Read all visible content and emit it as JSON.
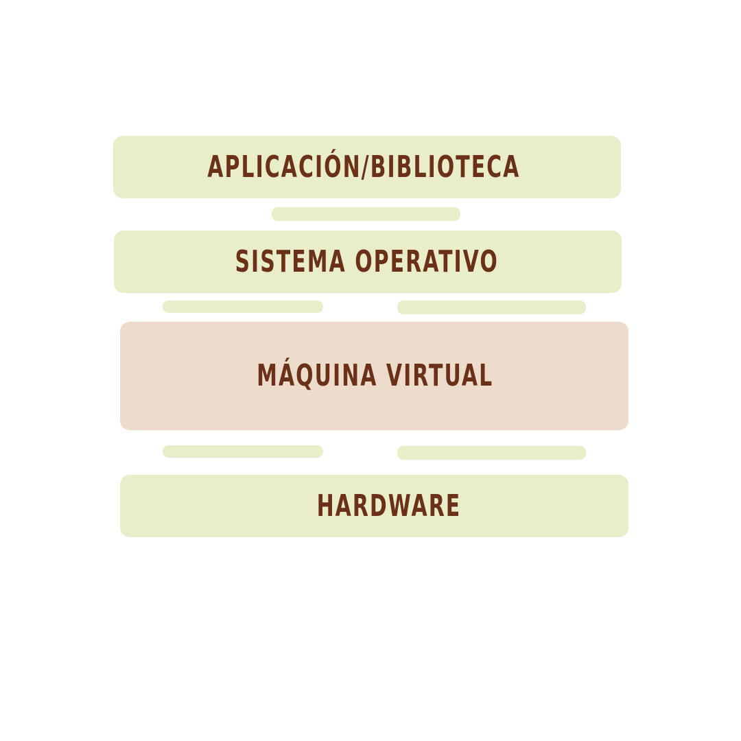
{
  "colors": {
    "background": "#ffffff",
    "layer_fill": "#e9edca",
    "highlight_fill": "#eddccb",
    "connector_fill": "#e9edca",
    "text": "#6b3018"
  },
  "layers": [
    {
      "label": "APLICACIÓN/BIBLIOTECA",
      "highlight": false
    },
    {
      "label": "SISTEMA OPERATIVO",
      "highlight": false
    },
    {
      "label": "MÁQUINA VIRTUAL",
      "highlight": true
    },
    {
      "label": "HARDWARE",
      "highlight": false
    }
  ]
}
